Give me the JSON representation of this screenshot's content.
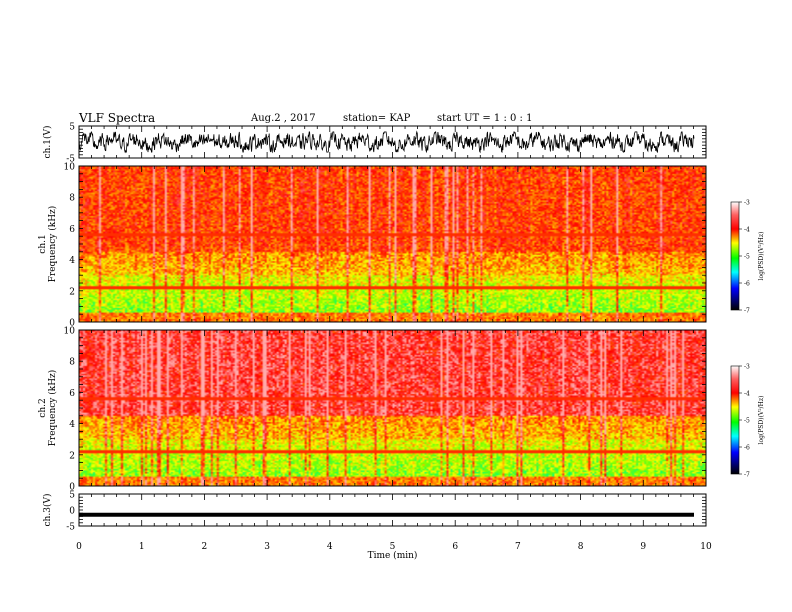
{
  "header": {
    "title": "VLF Spectra",
    "date": "Aug.2 , 2017",
    "station": "station= KAP",
    "start_ut": "start UT = 1 : 0 : 1"
  },
  "chart_data": [
    {
      "type": "line",
      "panel": "ch1-waveform",
      "ylabel": "ch.1(V)",
      "ylim": [
        -5,
        5
      ],
      "yticks": [
        "5",
        "-5"
      ],
      "xlim": [
        0,
        10
      ],
      "description_values": "noisy waveform oscillating roughly between -3 and 3 V"
    },
    {
      "type": "heatmap",
      "panel": "ch1-spectrogram",
      "ylabel": "ch.1\nFrequency (kHz)",
      "ylim": [
        0,
        10
      ],
      "yticks": [
        "0",
        "2",
        "4",
        "6",
        "8",
        "10"
      ],
      "xlim": [
        0,
        10
      ],
      "colorbar": {
        "label": "log(PSD)(V²/Hz)",
        "range": [
          -7,
          -3
        ],
        "ticks": [
          "-3",
          "-4",
          "-5",
          "-6",
          "-7"
        ]
      }
    },
    {
      "type": "heatmap",
      "panel": "ch2-spectrogram",
      "ylabel": "ch.2\nFrequency (kHz)",
      "ylim": [
        0,
        10
      ],
      "yticks": [
        "0",
        "2",
        "4",
        "6",
        "8",
        "10"
      ],
      "xlim": [
        0,
        10
      ],
      "colorbar": {
        "label": "log(PSD)(V²/Hz)",
        "range": [
          -7,
          -3
        ],
        "ticks": [
          "-3",
          "-4",
          "-5",
          "-6",
          "-7"
        ]
      }
    },
    {
      "type": "line",
      "panel": "ch3-waveform",
      "ylabel": "ch.3(V)",
      "ylim": [
        -5,
        5
      ],
      "yticks": [
        "5",
        "0",
        "-5"
      ],
      "xlim": [
        0,
        10
      ],
      "value": -1.5
    }
  ],
  "xaxis": {
    "label": "Time (min)",
    "ticks": [
      "0",
      "1",
      "2",
      "3",
      "4",
      "5",
      "6",
      "7",
      "8",
      "9",
      "10"
    ]
  },
  "colors": {
    "high": "#ff0000",
    "mid_high": "#ffff00",
    "mid": "#00ff00",
    "mid_low": "#00ffff",
    "low": "#0000ff",
    "lowest": "#000000"
  }
}
